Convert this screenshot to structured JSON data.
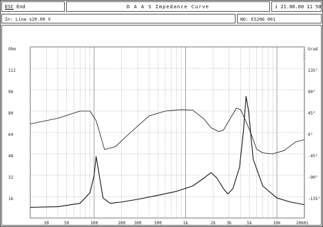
{
  "header": {
    "esc_key": "ESC",
    "esc_label": "End",
    "title": "D A A S  Impedance Curve",
    "info_icon": "i",
    "datetime": "21.06.00 11 50"
  },
  "subheader": {
    "input_label": "In: Line  ±20.00 V",
    "no_label": "NO: ES206 001"
  },
  "watermark": "DAAS",
  "colors": {
    "line": "#111111",
    "grid": "#777777",
    "background": "#ffffff"
  },
  "chart_data": {
    "type": "line",
    "xscale": "log",
    "xlim": [
      20,
      20000
    ],
    "ylim": [
      0,
      128
    ],
    "y2lim": [
      -180,
      180
    ],
    "ylabel": "Ohm",
    "xunit": "Hz",
    "grid": true,
    "x_ticks": [
      {
        "v": 30,
        "label": "30"
      },
      {
        "v": 50,
        "label": "50"
      },
      {
        "v": 100,
        "label": "100"
      },
      {
        "v": 200,
        "label": "200"
      },
      {
        "v": 300,
        "label": "300"
      },
      {
        "v": 500,
        "label": "500"
      },
      {
        "v": 1000,
        "label": "1k"
      },
      {
        "v": 2000,
        "label": "2k"
      },
      {
        "v": 3000,
        "label": "3k"
      },
      {
        "v": 5000,
        "label": "5k"
      },
      {
        "v": 10000,
        "label": "10k"
      },
      {
        "v": 20000,
        "label": "20kHz"
      }
    ],
    "y_ticks": [
      {
        "v": 128,
        "label": "Ohm"
      },
      {
        "v": 112,
        "label": "112"
      },
      {
        "v": 96,
        "label": "96"
      },
      {
        "v": 80,
        "label": "80"
      },
      {
        "v": 64,
        "label": "64"
      },
      {
        "v": 48,
        "label": "48"
      },
      {
        "v": 32,
        "label": "32"
      },
      {
        "v": 16,
        "label": "16"
      }
    ],
    "y2_ticks": [
      {
        "v": 180,
        "label": "Grad"
      },
      {
        "v": 135,
        "label": "135°"
      },
      {
        "v": 90,
        "label": "90°"
      },
      {
        "v": 45,
        "label": "45°"
      },
      {
        "v": 0,
        "label": "0°"
      },
      {
        "v": -45,
        "label": "-45°"
      },
      {
        "v": -90,
        "label": "-90°"
      },
      {
        "v": -135,
        "label": "-135°"
      }
    ],
    "series": [
      {
        "axis": "left",
        "points": [
          [
            20,
            8
          ],
          [
            40,
            8.5
          ],
          [
            70,
            11
          ],
          [
            90,
            19
          ],
          [
            100,
            32
          ],
          [
            105,
            46
          ],
          [
            110,
            38
          ],
          [
            125,
            15
          ],
          [
            150,
            11
          ],
          [
            200,
            12
          ],
          [
            300,
            14
          ],
          [
            500,
            17
          ],
          [
            800,
            20
          ],
          [
            1200,
            24
          ],
          [
            1600,
            30
          ],
          [
            1900,
            34
          ],
          [
            2200,
            30
          ],
          [
            2600,
            22
          ],
          [
            2900,
            18
          ],
          [
            3300,
            22
          ],
          [
            3900,
            38
          ],
          [
            4300,
            65
          ],
          [
            4600,
            91
          ],
          [
            4900,
            80
          ],
          [
            5500,
            44
          ],
          [
            7000,
            24
          ],
          [
            10000,
            15
          ],
          [
            14000,
            12
          ],
          [
            20000,
            10
          ]
        ]
      },
      {
        "axis": "right",
        "points": [
          [
            20,
            18
          ],
          [
            40,
            30
          ],
          [
            70,
            45
          ],
          [
            90,
            45
          ],
          [
            105,
            25
          ],
          [
            130,
            -36
          ],
          [
            170,
            -30
          ],
          [
            250,
            0
          ],
          [
            400,
            35
          ],
          [
            600,
            45
          ],
          [
            900,
            48
          ],
          [
            1200,
            47
          ],
          [
            1600,
            28
          ],
          [
            1900,
            10
          ],
          [
            2300,
            2
          ],
          [
            2600,
            5
          ],
          [
            3100,
            30
          ],
          [
            3600,
            51
          ],
          [
            4000,
            48
          ],
          [
            4500,
            27
          ],
          [
            5200,
            -2
          ],
          [
            6000,
            -35
          ],
          [
            7000,
            -43
          ],
          [
            9000,
            -45
          ],
          [
            12000,
            -38
          ],
          [
            16000,
            -20
          ],
          [
            20000,
            -15
          ]
        ]
      }
    ]
  }
}
